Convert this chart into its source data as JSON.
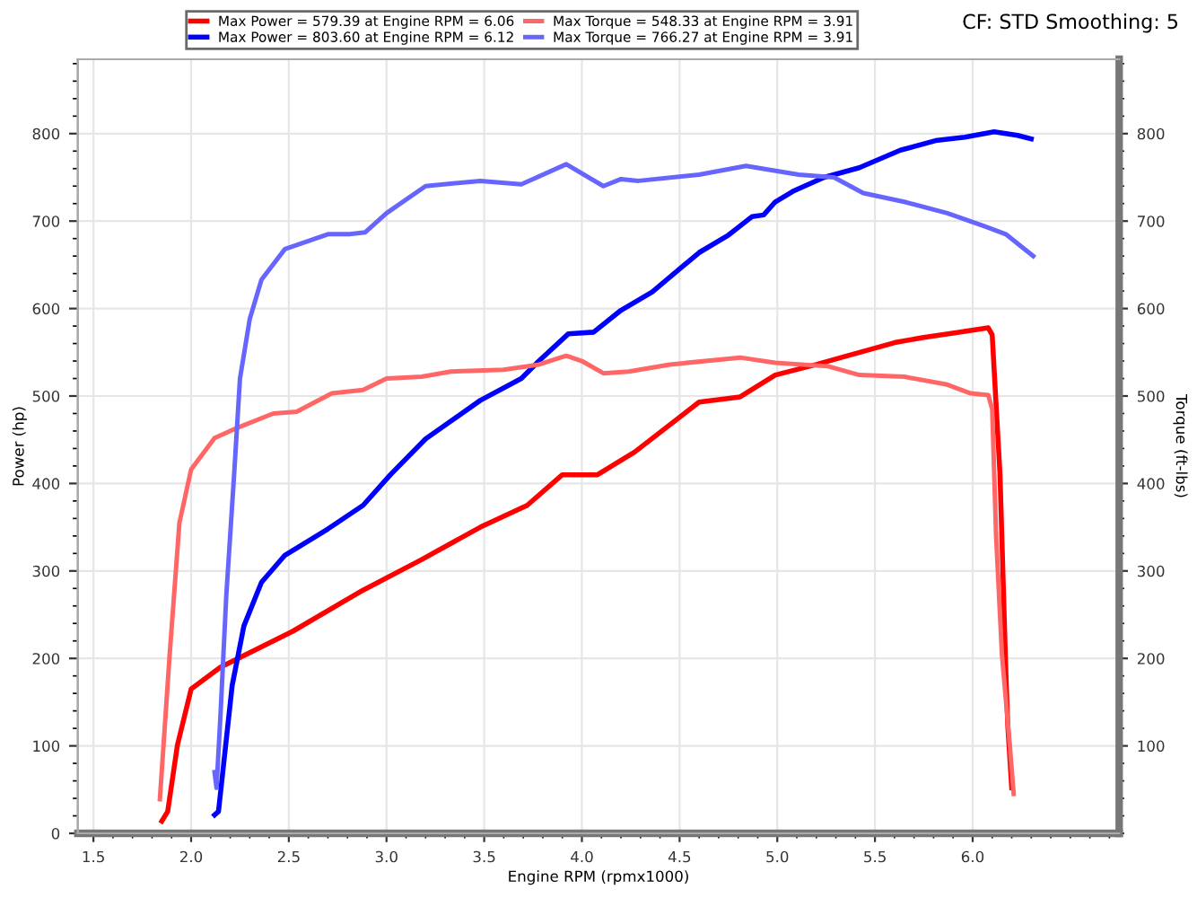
{
  "chart_data": {
    "type": "line",
    "xlabel": "Engine RPM (rpmx1000)",
    "ylabel": "Power (hp)",
    "y2label": "Torque (ft-lbs)",
    "annotations": [
      "CF: STD Smoothing: 5"
    ],
    "xlim": [
      1.42,
      6.75
    ],
    "xticks": [
      {
        "value": 1.5,
        "label": "1.5"
      },
      {
        "value": 2.0,
        "label": "2.0"
      },
      {
        "value": 2.5,
        "label": "2.5"
      },
      {
        "value": 3.0,
        "label": "3.0"
      },
      {
        "value": 3.5,
        "label": "3.5"
      },
      {
        "value": 4.0,
        "label": "4.0"
      },
      {
        "value": 4.5,
        "label": "4.5"
      },
      {
        "value": 5.0,
        "label": "5.0"
      },
      {
        "value": 5.5,
        "label": "5.5"
      },
      {
        "value": 6.0,
        "label": "6.0"
      }
    ],
    "ylim": [
      0,
      885
    ],
    "yticks": [
      0,
      100,
      200,
      300,
      400,
      500,
      600,
      700,
      800
    ],
    "y2lim": [
      0,
      885
    ],
    "y2ticks": [
      100,
      200,
      300,
      400,
      500,
      600,
      700,
      800
    ],
    "grid": true,
    "legend": "top left",
    "marker": "none",
    "line_style": "solid",
    "series": [
      {
        "name": "Max Power = 579.39 at Engine RPM = 6.06",
        "color": "#ff0000",
        "x": [
          1.85,
          1.88,
          1.93,
          2.0,
          2.15,
          2.52,
          2.88,
          3.18,
          3.48,
          3.72,
          3.9,
          4.08,
          4.27,
          4.6,
          4.81,
          4.99,
          5.2,
          5.36,
          5.6,
          5.75,
          5.93,
          6.08,
          6.1,
          6.14,
          6.17,
          6.18,
          6.2
        ],
        "values": [
          14,
          25,
          101,
          165,
          190,
          231,
          278,
          313,
          350,
          375,
          410,
          410,
          436,
          493,
          499,
          524,
          536,
          546,
          561,
          567,
          573,
          578,
          570,
          410,
          184,
          122,
          52
        ]
      },
      {
        "name": "Max Power = 803.60 at Engine RPM = 6.12",
        "color": "#0000ff",
        "x": [
          2.12,
          2.14,
          2.16,
          2.21,
          2.27,
          2.36,
          2.48,
          2.7,
          2.88,
          3.02,
          3.2,
          3.48,
          3.69,
          3.78,
          3.93,
          4.06,
          4.2,
          4.36,
          4.6,
          4.75,
          4.87,
          4.93,
          4.99,
          5.08,
          5.24,
          5.42,
          5.63,
          5.81,
          5.96,
          6.11,
          6.23,
          6.3
        ],
        "values": [
          21,
          25,
          66,
          169,
          237,
          287,
          318,
          348,
          375,
          410,
          451,
          495,
          520,
          540,
          571,
          573,
          598,
          619,
          664,
          684,
          705,
          707,
          722,
          734,
          750,
          761,
          781,
          792,
          796,
          802,
          798,
          794
        ]
      },
      {
        "name": "Max Torque = 548.33 at Engine RPM = 3.91",
        "color": "#ff6666",
        "axis": "y2",
        "x": [
          1.84,
          1.85,
          1.89,
          1.94,
          2.0,
          2.12,
          2.24,
          2.42,
          2.54,
          2.72,
          2.88,
          3.0,
          3.18,
          3.33,
          3.6,
          3.78,
          3.92,
          4.0,
          4.11,
          4.24,
          4.45,
          4.81,
          4.99,
          5.26,
          5.42,
          5.65,
          5.87,
          5.99,
          6.08,
          6.1,
          6.12,
          6.15,
          6.19,
          6.21
        ],
        "values": [
          39,
          72,
          204,
          355,
          416,
          452,
          464,
          480,
          482,
          503,
          507,
          520,
          522,
          528,
          530,
          536,
          546,
          540,
          526,
          528,
          536,
          544,
          538,
          534,
          524,
          522,
          513,
          503,
          501,
          485,
          340,
          204,
          101,
          45
        ]
      },
      {
        "name": "Max Torque = 766.27 at Engine RPM = 3.91",
        "color": "#6666ff",
        "axis": "y2",
        "x": [
          2.12,
          2.13,
          2.15,
          2.18,
          2.22,
          2.25,
          2.3,
          2.36,
          2.48,
          2.7,
          2.81,
          2.89,
          3.0,
          3.2,
          3.48,
          3.69,
          3.92,
          4.11,
          4.2,
          4.29,
          4.6,
          4.84,
          5.11,
          5.29,
          5.44,
          5.65,
          5.87,
          6.05,
          6.17,
          6.31
        ],
        "values": [
          70,
          52,
          134,
          272,
          410,
          520,
          588,
          633,
          668,
          685,
          685,
          687,
          709,
          740,
          746,
          742,
          765,
          740,
          748,
          746,
          753,
          763,
          753,
          750,
          732,
          722,
          709,
          695,
          685,
          660
        ]
      }
    ]
  }
}
